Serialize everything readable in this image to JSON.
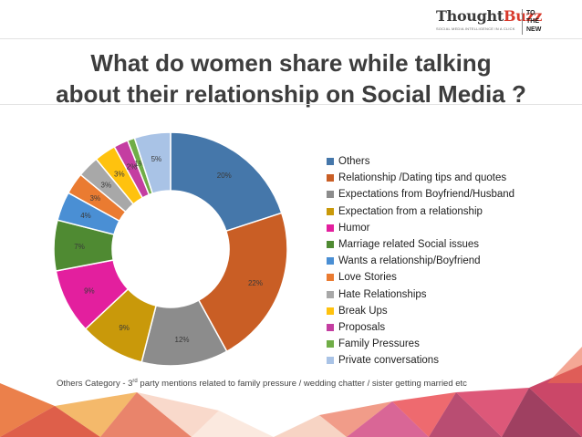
{
  "header": {
    "logo_name_a": "Thought",
    "logo_name_b": "Buzz",
    "logo_tagline": "SOCIAL MEDIA INTELLIGENCE IN A CLICK",
    "logo_mark": "TO\nTHE\nNEW"
  },
  "title": "What do women share while talking\nabout their relationship on Social Media ?",
  "chart_data": {
    "type": "pie",
    "donut": true,
    "categories": [
      "Others",
      "Relationship /Dating tips and quotes",
      "Expectations from Boyfriend/Husband",
      "Expectation from a relationship",
      "Humor",
      "Marriage related Social issues",
      "Wants a relationship/Boyfriend",
      "Love Stories",
      "Hate Relationships",
      "Break Ups",
      "Proposals",
      "Family Pressures",
      "Private conversations"
    ],
    "values": [
      20,
      22,
      12,
      9,
      9,
      7,
      4,
      3,
      3,
      3,
      2,
      1,
      5
    ],
    "labels": [
      "20%",
      "22%",
      "12%",
      "9%",
      "9%",
      "7%",
      "4%",
      "3%",
      "3%",
      "3%",
      "2%",
      "1%",
      "5%"
    ],
    "colors": [
      "#4577aa",
      "#c95e25",
      "#8c8c8c",
      "#c9990a",
      "#e31f9e",
      "#4f8a32",
      "#4a8fd4",
      "#ea7b31",
      "#a8a8a8",
      "#ffc20e",
      "#c43ea1",
      "#70ad47",
      "#a9c3e6"
    ],
    "legend_position": "right",
    "start_angle_deg": 0
  },
  "footnote": {
    "prefix": "Others Category - 3",
    "sup": "rd",
    "suffix": " party mentions related to family pressure / wedding chatter / sister getting married etc"
  }
}
